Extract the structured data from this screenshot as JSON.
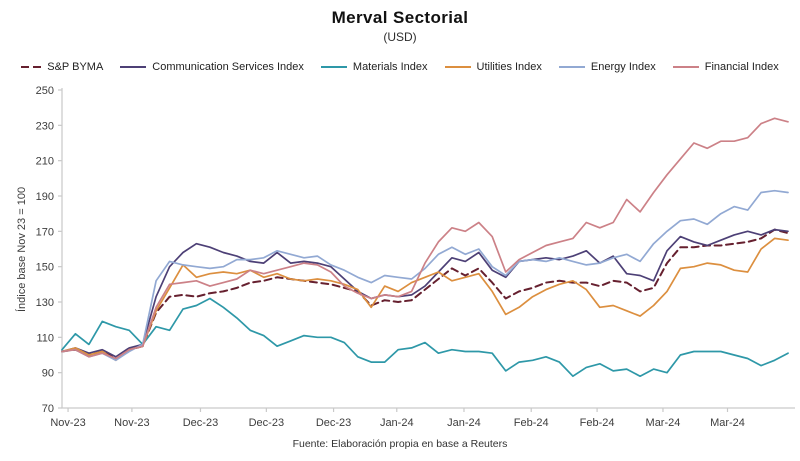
{
  "header": {
    "title": "Merval Sectorial",
    "subtitle": "(USD)"
  },
  "footer": {
    "source": "Fuente: Elaboración propia en base a Reuters"
  },
  "chart_data": {
    "type": "line",
    "title": "Merval Sectorial",
    "subtitle": "(USD)",
    "ylabel": "Índice base Nov 23 = 100",
    "ylim": [
      70,
      250
    ],
    "ytick_step": 20,
    "grid": false,
    "legend_position": "top",
    "axis_color": "#c9c9c9",
    "x_count": 55,
    "x_tick_labels": [
      "Nov-23",
      "Nov-23",
      "Dec-23",
      "Dec-23",
      "Dec-23",
      "Jan-24",
      "Jan-24",
      "Feb-24",
      "Feb-24",
      "Mar-24",
      "Mar-24"
    ],
    "x_tick_positions": [
      0.45,
      5.2,
      10.3,
      15.2,
      20.2,
      24.9,
      29.9,
      34.9,
      39.8,
      44.7,
      49.5
    ],
    "series": [
      {
        "name": "S&P BYMA",
        "color": "#66202f",
        "dash": true,
        "values": [
          102,
          103,
          100,
          102,
          98,
          103,
          105,
          124,
          133,
          134,
          133,
          135,
          136,
          138,
          141,
          142,
          144,
          143,
          142,
          141,
          140,
          138,
          136,
          128,
          131,
          130,
          131,
          137,
          143,
          149,
          145,
          149,
          141,
          132,
          136,
          138,
          141,
          142,
          141,
          141,
          139,
          142,
          141,
          136,
          138,
          152,
          161,
          161,
          162,
          162,
          163,
          164,
          166,
          171,
          169
        ]
      },
      {
        "name": "Communication Services Index",
        "color": "#4d4076",
        "dash": false,
        "values": [
          102,
          104,
          101,
          103,
          99,
          104,
          106,
          133,
          150,
          158,
          163,
          161,
          158,
          156,
          153,
          152,
          158,
          152,
          153,
          152,
          150,
          143,
          136,
          132,
          134,
          133,
          134,
          139,
          147,
          155,
          153,
          158,
          148,
          144,
          153,
          154,
          155,
          154,
          156,
          159,
          152,
          156,
          146,
          145,
          142,
          159,
          167,
          164,
          162,
          165,
          168,
          170,
          168,
          171,
          170
        ]
      },
      {
        "name": "Materials Index",
        "color": "#2e98a8",
        "dash": false,
        "values": [
          103,
          112,
          106,
          119,
          116,
          114,
          106,
          116,
          114,
          126,
          128,
          132,
          127,
          121,
          114,
          111,
          105,
          108,
          111,
          110,
          110,
          107,
          99,
          96,
          96,
          103,
          104,
          107,
          101,
          103,
          102,
          102,
          101,
          91,
          96,
          97,
          99,
          96,
          88,
          93,
          95,
          91,
          92,
          88,
          92,
          90,
          100,
          102,
          102,
          102,
          100,
          98,
          94,
          97,
          101
        ]
      },
      {
        "name": "Utilities Index",
        "color": "#dc8f3f",
        "dash": false,
        "values": [
          102,
          104,
          100,
          102,
          97,
          103,
          105,
          125,
          138,
          151,
          144,
          146,
          147,
          146,
          148,
          144,
          146,
          143,
          142,
          143,
          142,
          140,
          137,
          127,
          139,
          136,
          141,
          144,
          147,
          142,
          144,
          146,
          136,
          123,
          127,
          133,
          137,
          140,
          142,
          137,
          127,
          128,
          125,
          122,
          128,
          136,
          149,
          150,
          152,
          151,
          148,
          147,
          160,
          166,
          165
        ]
      },
      {
        "name": "Energy Index",
        "color": "#92a9d3",
        "dash": false,
        "values": [
          102,
          103,
          99,
          101,
          97,
          102,
          106,
          142,
          153,
          151,
          150,
          149,
          150,
          154,
          154,
          155,
          159,
          157,
          155,
          156,
          151,
          148,
          144,
          141,
          145,
          144,
          143,
          149,
          157,
          161,
          157,
          160,
          150,
          145,
          153,
          154,
          153,
          155,
          153,
          151,
          152,
          155,
          157,
          153,
          163,
          170,
          176,
          177,
          174,
          180,
          184,
          182,
          192,
          193,
          192
        ]
      },
      {
        "name": "Financial Index",
        "color": "#cc8187",
        "dash": false,
        "values": [
          102,
          103,
          99,
          101,
          98,
          103,
          105,
          127,
          140,
          141,
          142,
          139,
          141,
          143,
          148,
          146,
          148,
          150,
          152,
          151,
          147,
          139,
          135,
          132,
          134,
          133,
          136,
          152,
          164,
          172,
          170,
          175,
          167,
          147,
          154,
          158,
          162,
          164,
          166,
          175,
          172,
          175,
          188,
          181,
          192,
          202,
          211,
          220,
          217,
          221,
          221,
          223,
          231,
          234,
          232
        ]
      }
    ]
  }
}
